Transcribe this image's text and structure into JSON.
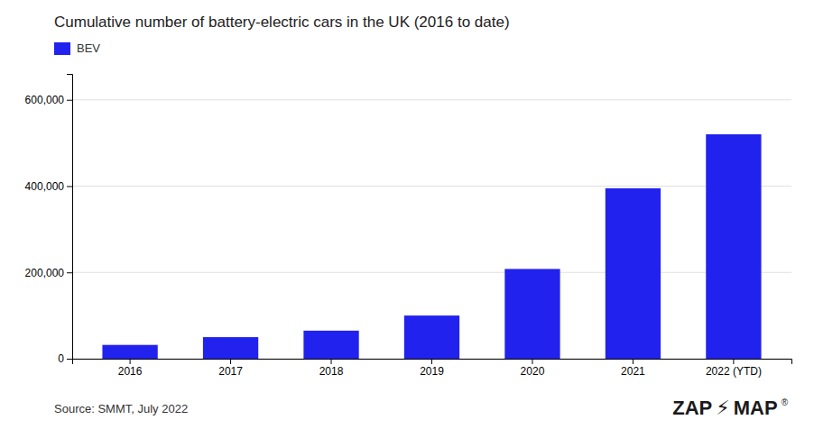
{
  "chart_data": {
    "type": "bar",
    "title": "Cumulative number of battery-electric cars in the UK (2016 to date)",
    "categories": [
      "2016",
      "2017",
      "2018",
      "2019",
      "2020",
      "2021",
      "2022 (YTD)"
    ],
    "series": [
      {
        "name": "BEV",
        "color": "#2222ee",
        "values": [
          32000,
          50000,
          65000,
          100000,
          208000,
          395000,
          520000
        ]
      }
    ],
    "ylim": [
      0,
      660000
    ],
    "yticks": [
      0,
      {
        "value": 200000,
        "label": "200,000"
      },
      {
        "value": 400000,
        "label": "400,000"
      },
      {
        "value": 600000,
        "label": "600,000"
      }
    ],
    "grid": true,
    "legend": "top-left",
    "annotations": [
      "Source: SMMT, July 2022",
      "ZAP",
      "⚡",
      "MAP",
      "®"
    ]
  }
}
